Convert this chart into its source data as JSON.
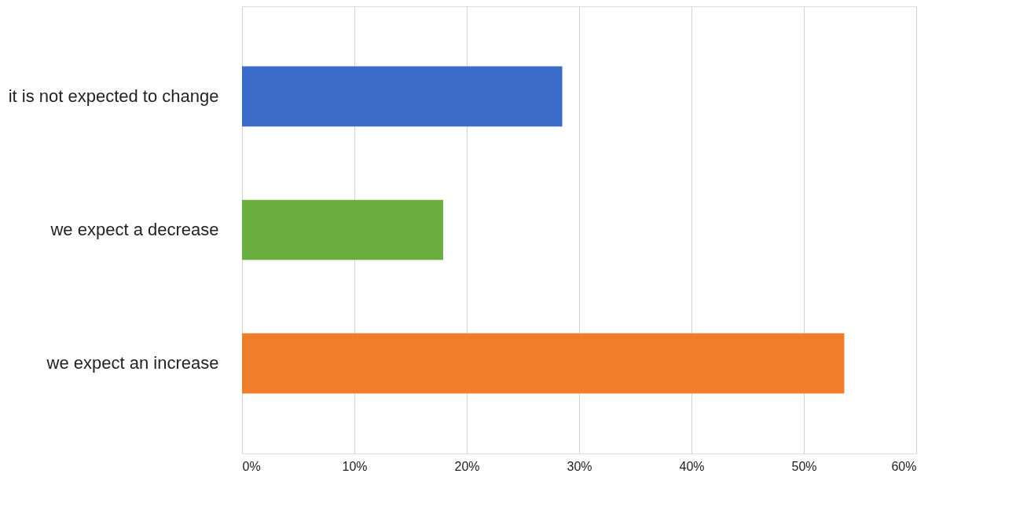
{
  "chart_data": {
    "type": "bar",
    "orientation": "horizontal",
    "categories": [
      "it is not expected to change",
      "we expect a decrease",
      "we expect an increase"
    ],
    "values": [
      28.5,
      17.9,
      53.6
    ],
    "colors": [
      "#3a6bc9",
      "#6aae3f",
      "#f07d2a"
    ],
    "xlim": [
      0,
      60
    ],
    "xticks": [
      {
        "value": 0,
        "label": "0%"
      },
      {
        "value": 10,
        "label": "10%"
      },
      {
        "value": 20,
        "label": "20%"
      },
      {
        "value": 30,
        "label": "30%"
      },
      {
        "value": 40,
        "label": "40%"
      },
      {
        "value": 50,
        "label": "50%"
      },
      {
        "value": 60,
        "label": "60%"
      }
    ],
    "grid": "x",
    "legend": false
  }
}
